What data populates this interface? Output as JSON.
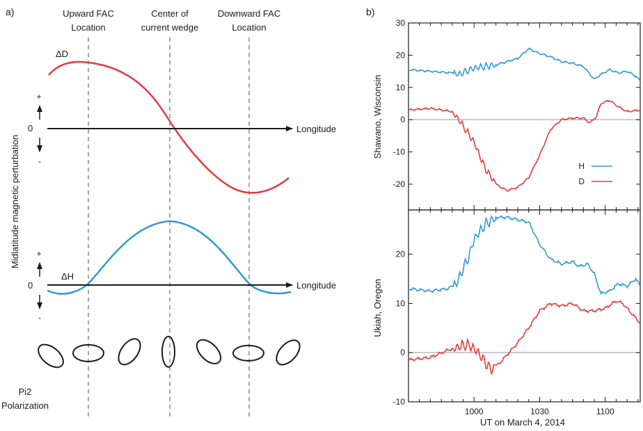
{
  "panel_a": {
    "label": "a)",
    "headers": [
      "Upward FAC",
      "Location",
      "Center of",
      "current wedge",
      "Downward FAC",
      "Location"
    ],
    "delta_d_label": "ΔD",
    "delta_h_label": "ΔH",
    "axis_label": "Longitude",
    "ylabel": "Midlatitude magnetic perturbation",
    "plus": "+",
    "zero": "0",
    "minus": "-",
    "pol_label_1": "Pi2",
    "pol_label_2": "Polarization",
    "colors": {
      "d": "#e8393b",
      "h": "#2e9bd0",
      "axis": "#1a1a1a",
      "dashed": "#888888"
    }
  },
  "chart_data": [
    {
      "type": "line",
      "panel": "b)",
      "station_label": "Shawano, Wisconsin",
      "x_ticks": [],
      "y_ticks": [
        -20,
        -10,
        0,
        10,
        20,
        30
      ],
      "ylim": [
        -28,
        30
      ],
      "legend": [
        {
          "name": "H",
          "color": "#2e9bd0"
        },
        {
          "name": "D",
          "color": "#e8393b"
        }
      ],
      "legend_position": "lower-right",
      "zero_line": true,
      "series": [
        {
          "name": "H",
          "color": "#2e9bd0",
          "x": [
            970,
            980,
            990,
            993,
            1000,
            1010,
            1020,
            1025,
            1030,
            1035,
            1040,
            1045,
            1050,
            1055,
            1058,
            1062,
            1066,
            1070,
            1074,
            1076
          ],
          "y": [
            15.5,
            15,
            14.5,
            14,
            16,
            17,
            19,
            22,
            20.5,
            19.5,
            18,
            17.5,
            16.5,
            12.5,
            14,
            15.5,
            14.5,
            15,
            13.5,
            12
          ]
        },
        {
          "name": "D",
          "color": "#e8393b",
          "x": [
            970,
            980,
            985,
            990,
            993,
            996,
            1000,
            1005,
            1010,
            1015,
            1020,
            1025,
            1030,
            1035,
            1040,
            1045,
            1050,
            1053,
            1056,
            1058,
            1062,
            1066,
            1070,
            1076
          ],
          "y": [
            3,
            3.5,
            3,
            2.5,
            0,
            -3,
            -7,
            -15,
            -20,
            -22,
            -21,
            -18,
            -11,
            -3,
            0,
            0.5,
            0.5,
            -1,
            1,
            5,
            6,
            4,
            2.5,
            3
          ]
        }
      ]
    },
    {
      "type": "line",
      "panel": "b)",
      "station_label": "Ukiah, Oregon",
      "xlabel": "UT on March 4, 2014",
      "x_ticks": [
        1000,
        1030,
        1100
      ],
      "y_ticks": [
        -10,
        0,
        10,
        20
      ],
      "ylim": [
        -10,
        29
      ],
      "zero_line": true,
      "series": [
        {
          "name": "H",
          "color": "#2e9bd0",
          "x": [
            970,
            980,
            988,
            992,
            995,
            998,
            1000,
            1005,
            1010,
            1015,
            1020,
            1025,
            1030,
            1035,
            1040,
            1045,
            1048,
            1052,
            1055,
            1058,
            1062,
            1066,
            1070,
            1074,
            1076
          ],
          "y": [
            13,
            12.5,
            13,
            14,
            17,
            20,
            23,
            26,
            27.5,
            27.5,
            27,
            26.5,
            22,
            19,
            18,
            18.5,
            17.5,
            18,
            16,
            12,
            12.5,
            14,
            13.5,
            15,
            13.5
          ]
        },
        {
          "name": "D",
          "color": "#e8393b",
          "x": [
            970,
            980,
            988,
            992,
            995,
            998,
            1002,
            1005,
            1008,
            1012,
            1016,
            1020,
            1025,
            1030,
            1035,
            1040,
            1045,
            1050,
            1055,
            1060,
            1065,
            1068,
            1072,
            1076
          ],
          "y": [
            -1.5,
            -1,
            0.5,
            1,
            1.5,
            1.5,
            0,
            -2,
            -3.5,
            -2,
            0,
            2,
            5,
            8.5,
            10,
            9.5,
            10,
            8.5,
            8.5,
            9,
            10.5,
            10,
            8,
            6
          ]
        }
      ]
    }
  ]
}
